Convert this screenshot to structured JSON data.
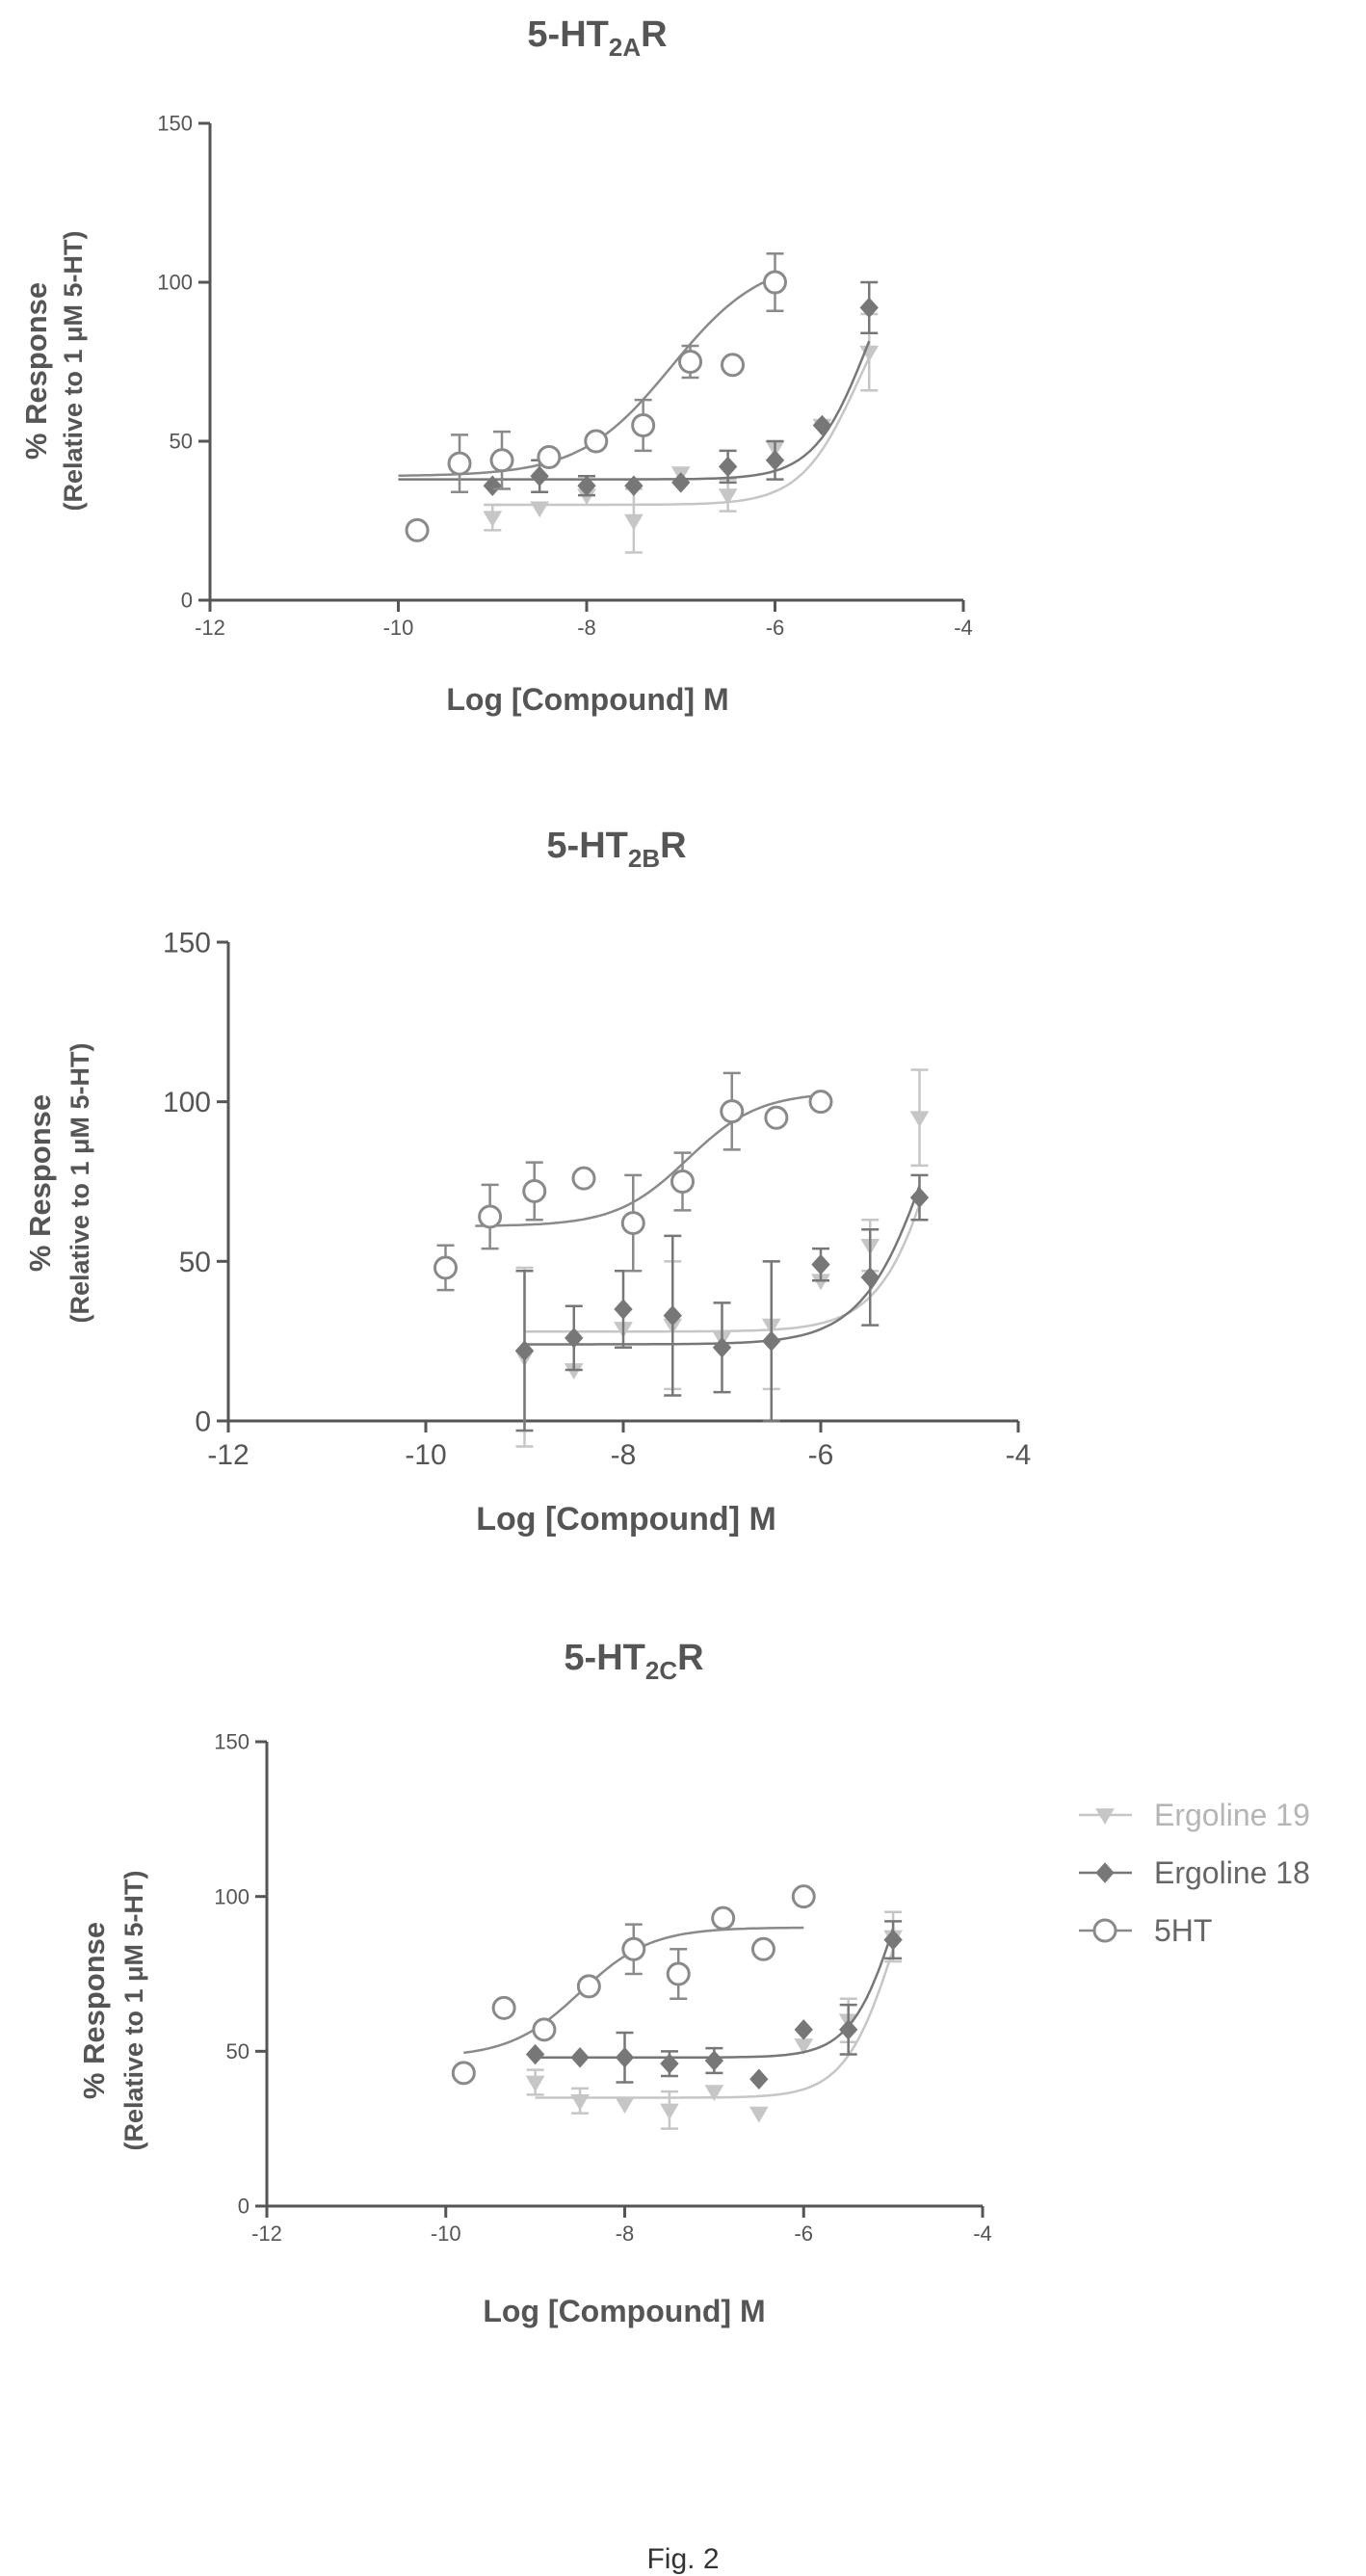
{
  "figure_caption": "Fig. 2",
  "legend": {
    "items": [
      {
        "key": "ergoline19",
        "label": "Ergoline 19"
      },
      {
        "key": "ergoline18",
        "label": "Ergoline 18"
      },
      {
        "key": "fiveht",
        "label": "5HT"
      }
    ]
  },
  "styles": {
    "ergoline19": {
      "color": "#c6c6c6",
      "marker": "triangle-down"
    },
    "ergoline18": {
      "color": "#777777",
      "marker": "diamond"
    },
    "fiveht": {
      "color": "#8a8a8a",
      "marker": "circle-open"
    }
  },
  "chart_data": [
    {
      "type": "scatter",
      "title_main": "5-HT",
      "title_sub": "2A",
      "title_suffix": "R",
      "xlabel": "Log [Compound] M",
      "ylabel_line1": "% Response",
      "ylabel_line2": "(Relative to 1 μM 5-HT)",
      "xlim": [
        -12,
        -4
      ],
      "ylim": [
        0,
        150
      ],
      "xticks": [
        -12,
        -10,
        -8,
        -6,
        -4
      ],
      "yticks": [
        0,
        50,
        100,
        150
      ],
      "grid": false,
      "series": [
        {
          "key": "fiveht",
          "x": [
            -9.8,
            -9.35,
            -8.9,
            -8.4,
            -7.9,
            -7.4,
            -6.9,
            -6.45,
            -6.0
          ],
          "y": [
            22,
            43,
            44,
            45,
            50,
            55,
            75,
            74,
            100
          ],
          "err": [
            0,
            9,
            9,
            0,
            0,
            8,
            5,
            0,
            9
          ],
          "fit": {
            "bottom": 39,
            "top": 108,
            "logec50": -7.1,
            "hill": 0.9,
            "xmin": -10.0,
            "xmax": -6.0
          }
        },
        {
          "key": "ergoline18",
          "x": [
            -9.0,
            -8.5,
            -8.0,
            -7.5,
            -7.0,
            -6.5,
            -6.0,
            -5.5,
            -5.0
          ],
          "y": [
            36,
            39,
            36,
            36,
            37,
            42,
            44,
            55,
            92
          ],
          "err": [
            0,
            5,
            3,
            0,
            0,
            5,
            6,
            0,
            8
          ],
          "fit": {
            "bottom": 38,
            "top": 125,
            "logec50": -5.0,
            "hill": 1.5,
            "xmin": -10.0,
            "xmax": -5.0
          }
        },
        {
          "key": "ergoline19",
          "x": [
            -9.0,
            -8.5,
            -8.0,
            -7.5,
            -7.0,
            -6.5,
            -6.0,
            -5.5,
            -5.0
          ],
          "y": [
            26,
            29,
            33,
            25,
            40,
            33,
            48,
            55,
            78
          ],
          "err": [
            4,
            0,
            0,
            10,
            0,
            5,
            0,
            0,
            12
          ],
          "fit": {
            "bottom": 30,
            "top": 110,
            "logec50": -5.1,
            "hill": 1.4,
            "xmin": -9.0,
            "xmax": -5.0
          }
        }
      ]
    },
    {
      "type": "scatter",
      "title_main": "5-HT",
      "title_sub": "2B",
      "title_suffix": "R",
      "xlabel": "Log [Compound] M",
      "ylabel_line1": "% Response",
      "ylabel_line2": "(Relative to 1 μM 5-HT)",
      "xlim": [
        -12,
        -4
      ],
      "ylim": [
        0,
        150
      ],
      "xticks": [
        -12,
        -10,
        -8,
        -6,
        -4
      ],
      "yticks": [
        0,
        50,
        100,
        150
      ],
      "grid": false,
      "series": [
        {
          "key": "fiveht",
          "x": [
            -9.8,
            -9.35,
            -8.9,
            -8.4,
            -7.9,
            -7.4,
            -6.9,
            -6.45,
            -6.0
          ],
          "y": [
            48,
            64,
            72,
            76,
            62,
            75,
            97,
            95,
            100
          ],
          "err": [
            7,
            10,
            9,
            0,
            15,
            9,
            12,
            0,
            0
          ],
          "fit": {
            "bottom": 61,
            "top": 103,
            "logec50": -7.35,
            "hill": 1.2,
            "xmin": -9.5,
            "xmax": -6.0
          }
        },
        {
          "key": "ergoline18",
          "x": [
            -9.0,
            -8.5,
            -8.0,
            -7.5,
            -7.0,
            -6.5,
            -6.0,
            -5.5,
            -5.0
          ],
          "y": [
            22,
            26,
            35,
            33,
            23,
            25,
            49,
            45,
            70
          ],
          "err": [
            25,
            10,
            12,
            25,
            14,
            25,
            5,
            15,
            7
          ],
          "fit": {
            "bottom": 24,
            "top": 160,
            "logec50": -4.8,
            "hill": 1.2,
            "xmin": -9.0,
            "xmax": -5.0
          }
        },
        {
          "key": "ergoline19",
          "x": [
            -9.0,
            -8.5,
            -8.0,
            -7.5,
            -7.0,
            -6.5,
            -6.0,
            -5.5,
            -5.0
          ],
          "y": [
            20,
            16,
            29,
            30,
            26,
            30,
            44,
            55,
            95
          ],
          "err": [
            28,
            0,
            0,
            20,
            0,
            20,
            0,
            8,
            15
          ],
          "fit": {
            "bottom": 28,
            "top": 200,
            "logec50": -4.6,
            "hill": 1.3,
            "xmin": -9.0,
            "xmax": -5.0
          }
        }
      ]
    },
    {
      "type": "scatter",
      "title_main": "5-HT",
      "title_sub": "2C",
      "title_suffix": "R",
      "xlabel": "Log [Compound] M",
      "ylabel_line1": "% Response",
      "ylabel_line2": "(Relative to 1 μM 5-HT)",
      "xlim": [
        -12,
        -4
      ],
      "ylim": [
        0,
        150
      ],
      "xticks": [
        -12,
        -10,
        -8,
        -6,
        -4
      ],
      "yticks": [
        0,
        50,
        100,
        150
      ],
      "grid": false,
      "series": [
        {
          "key": "fiveht",
          "x": [
            -9.8,
            -9.35,
            -8.9,
            -8.4,
            -7.9,
            -7.4,
            -6.9,
            -6.45,
            -6.0
          ],
          "y": [
            43,
            64,
            57,
            71,
            83,
            75,
            93,
            83,
            100
          ],
          "err": [
            0,
            0,
            0,
            0,
            8,
            8,
            0,
            0,
            0
          ],
          "fit": {
            "bottom": 48,
            "top": 90,
            "logec50": -8.5,
            "hill": 1.1,
            "xmin": -9.8,
            "xmax": -6.0
          }
        },
        {
          "key": "ergoline18",
          "x": [
            -9.0,
            -8.5,
            -8.0,
            -7.5,
            -7.0,
            -6.5,
            -6.0,
            -5.5,
            -5.0
          ],
          "y": [
            49,
            48,
            48,
            46,
            47,
            41,
            57,
            57,
            86
          ],
          "err": [
            0,
            0,
            8,
            4,
            4,
            0,
            0,
            8,
            6
          ],
          "fit": {
            "bottom": 48,
            "top": 150,
            "logec50": -4.9,
            "hill": 1.6,
            "xmin": -9.0,
            "xmax": -5.0
          }
        },
        {
          "key": "ergoline19",
          "x": [
            -9.0,
            -8.5,
            -8.0,
            -7.5,
            -7.0,
            -6.5,
            -6.0,
            -5.5,
            -5.0
          ],
          "y": [
            40,
            34,
            33,
            31,
            37,
            30,
            52,
            60,
            87
          ],
          "err": [
            4,
            4,
            0,
            6,
            0,
            0,
            0,
            7,
            8
          ],
          "fit": {
            "bottom": 35,
            "top": 140,
            "logec50": -4.95,
            "hill": 1.5,
            "xmin": -9.0,
            "xmax": -5.0
          }
        }
      ]
    }
  ]
}
